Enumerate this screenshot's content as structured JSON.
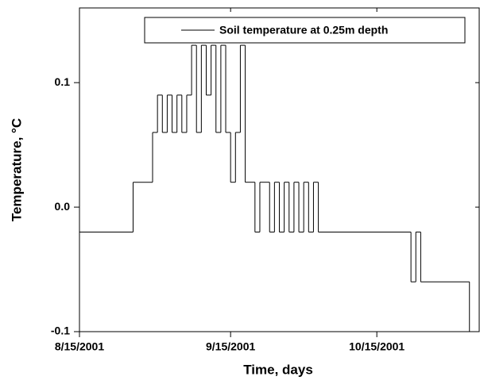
{
  "chart_data": {
    "type": "line",
    "step": "post",
    "x_label": "Time, days",
    "y_label": "Temperature, °C",
    "x": [
      "2001-08-15",
      "2001-08-26",
      "2001-08-30",
      "2001-08-31",
      "2001-09-01",
      "2001-09-02",
      "2001-09-03",
      "2001-09-04",
      "2001-09-05",
      "2001-09-06",
      "2001-09-07",
      "2001-09-08",
      "2001-09-09",
      "2001-09-10",
      "2001-09-11",
      "2001-09-12",
      "2001-09-13",
      "2001-09-14",
      "2001-09-15",
      "2001-09-16",
      "2001-09-17",
      "2001-09-18",
      "2001-09-20",
      "2001-09-21",
      "2001-09-23",
      "2001-09-24",
      "2001-09-25",
      "2001-09-26",
      "2001-09-27",
      "2001-09-28",
      "2001-09-29",
      "2001-09-30",
      "2001-10-01",
      "2001-10-02",
      "2001-10-03",
      "2001-10-22",
      "2001-10-23",
      "2001-10-24",
      "2001-11-03"
    ],
    "series": [
      {
        "name": "Soil temperature at 0.25m depth",
        "color": "#000000",
        "values": [
          -0.02,
          0.02,
          0.06,
          0.09,
          0.06,
          0.09,
          0.06,
          0.09,
          0.06,
          0.09,
          0.13,
          0.06,
          0.13,
          0.09,
          0.13,
          0.06,
          0.13,
          0.06,
          0.02,
          0.06,
          0.13,
          0.02,
          -0.02,
          0.02,
          -0.02,
          0.02,
          -0.02,
          0.02,
          -0.02,
          0.02,
          -0.02,
          0.02,
          -0.02,
          0.02,
          -0.02,
          -0.06,
          -0.02,
          -0.06,
          -0.1
        ]
      }
    ],
    "xlim": [
      "2001-08-15",
      "2001-11-05"
    ],
    "xticks": [
      {
        "value": "2001-08-15",
        "label": "8/15/2001"
      },
      {
        "value": "2001-09-15",
        "label": "9/15/2001"
      },
      {
        "value": "2001-10-15",
        "label": "10/15/2001"
      }
    ],
    "ylim": [
      -0.1,
      0.16
    ],
    "yticks": [
      -0.1,
      {
        "value": 0,
        "label": "0.0"
      },
      0.1
    ],
    "legend": "upper right"
  }
}
